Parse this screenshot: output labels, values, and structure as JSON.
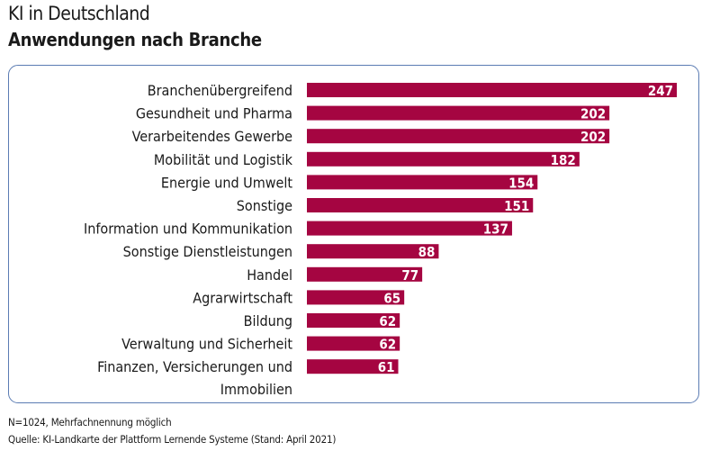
{
  "title": "KI in Deutschland",
  "subtitle": "Anwendungen nach Branche",
  "chart_data": {
    "type": "bar",
    "orientation": "horizontal",
    "categories": [
      "Branchenübergreifend",
      "Gesundheit und Pharma",
      "Verarbeitendes Gewerbe",
      "Mobilität und Logistik",
      "Energie und Umwelt",
      "Sonstige",
      "Information und Kommunikation",
      "Sonstige Dienstleistungen",
      "Handel",
      "Agrarwirtschaft",
      "Bildung",
      "Verwaltung und Sicherheit",
      [
        "Finanzen, Versicherungen und",
        "Immobilien"
      ]
    ],
    "values": [
      247,
      202,
      202,
      182,
      154,
      151,
      137,
      88,
      77,
      65,
      62,
      62,
      61
    ],
    "xlim": [
      0,
      247
    ],
    "grid": false,
    "data_labels": true,
    "bar_color": "#a50541",
    "label_color": "#ffffff"
  },
  "footnote": "N=1024, Mehrfachnennung möglich",
  "source": "Quelle: KI-Landkarte der Plattform Lernende Systeme (Stand: April 2021)"
}
